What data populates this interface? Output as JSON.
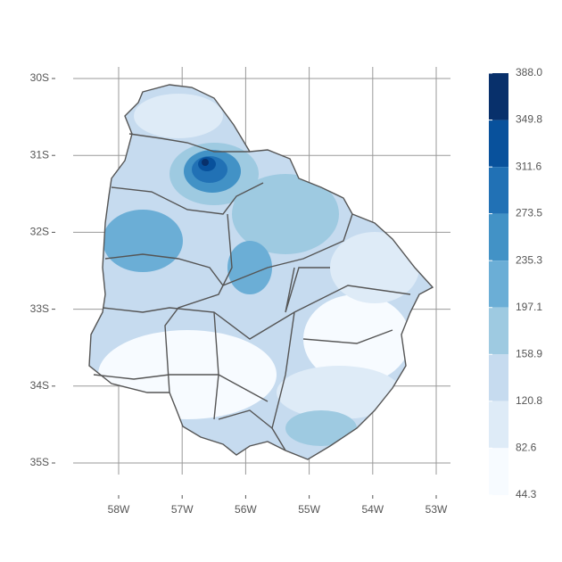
{
  "map": {
    "lat_ticks": [
      {
        "value": 30,
        "label": "30S"
      },
      {
        "value": 31,
        "label": "31S"
      },
      {
        "value": 32,
        "label": "32S"
      },
      {
        "value": 33,
        "label": "33S"
      },
      {
        "value": 34,
        "label": "34S"
      },
      {
        "value": 35,
        "label": "35S"
      }
    ],
    "lon_ticks": [
      {
        "value": 58,
        "label": "58W"
      },
      {
        "value": 57,
        "label": "57W"
      },
      {
        "value": 56,
        "label": "56W"
      },
      {
        "value": 55,
        "label": "55W"
      },
      {
        "value": 54,
        "label": "54W"
      },
      {
        "value": 53,
        "label": "53W"
      }
    ],
    "legend": {
      "breaks": [
        {
          "value": 388,
          "label": "388.0"
        },
        {
          "value": 349.8,
          "label": "349.8"
        },
        {
          "value": 311.6,
          "label": "311.6"
        },
        {
          "value": 273.5,
          "label": "273.5"
        },
        {
          "value": 235.3,
          "label": "235.3"
        },
        {
          "value": 197.1,
          "label": "197.1"
        },
        {
          "value": 158.9,
          "label": "158.9"
        },
        {
          "value": 120.8,
          "label": "120.8"
        },
        {
          "value": 82.6,
          "label": "82.6"
        },
        {
          "value": 44.3,
          "label": "44.3"
        }
      ],
      "colors": [
        "#08306b",
        "#08519c",
        "#2171b5",
        "#4292c6",
        "#6baed6",
        "#9ecae1",
        "#c6dbef",
        "#deebf7",
        "#f7fbff"
      ]
    }
  }
}
